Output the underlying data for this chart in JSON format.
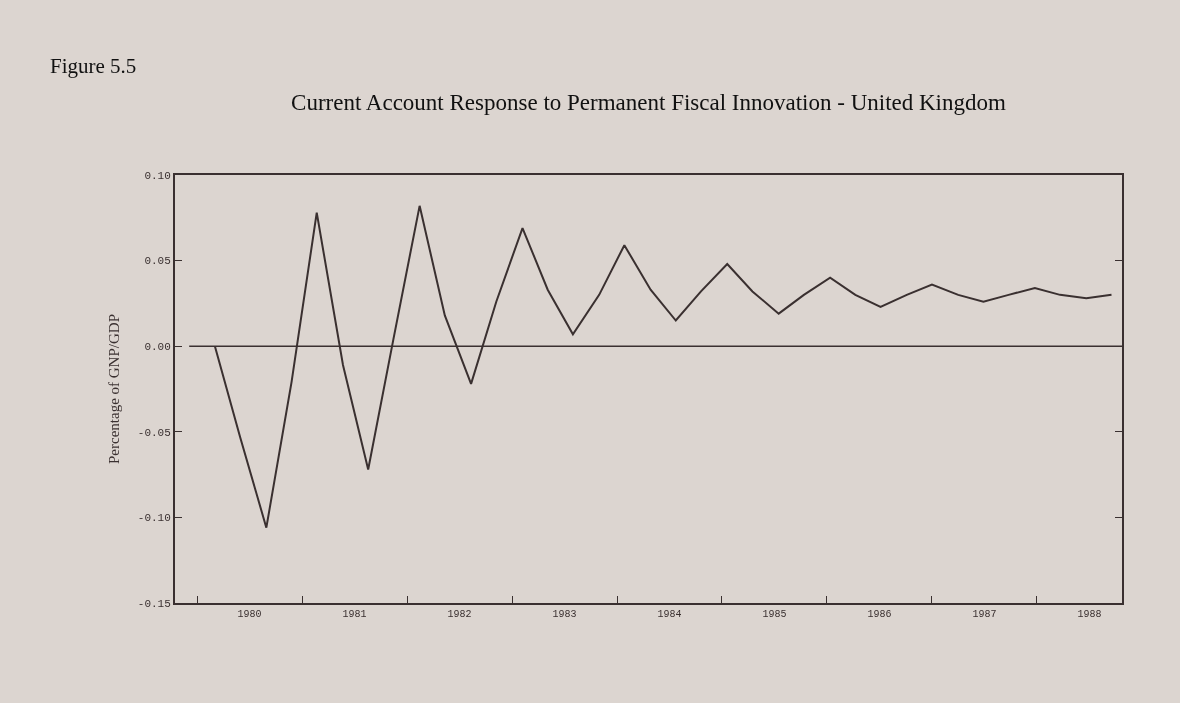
{
  "chart_data": {
    "type": "line",
    "title": "Current Account Response to Permanent Fiscal Innovation - United Kingdom",
    "ylabel": "Percentage of GNP/GDP",
    "annotations": [
      "Figure 5.5"
    ],
    "x": [
      1979.67,
      1979.91,
      1980.16,
      1980.4,
      1980.64,
      1980.89,
      1981.13,
      1981.37,
      1981.62,
      1981.86,
      1982.11,
      1982.35,
      1982.6,
      1982.84,
      1983.08,
      1983.33,
      1983.57,
      1983.82,
      1984.06,
      1984.3,
      1984.55,
      1984.79,
      1985.04,
      1985.28,
      1985.53,
      1985.77,
      1986.01,
      1986.26,
      1986.5,
      1986.75,
      1986.99,
      1987.23,
      1987.48,
      1987.72,
      1987.97,
      1988.21
    ],
    "series": [
      {
        "color": "#3a3030",
        "values": [
          0,
          -0.053,
          -0.106,
          -0.021,
          0.078,
          -0.011,
          -0.072,
          0.004,
          0.082,
          0.018,
          -0.022,
          0.026,
          0.069,
          0.033,
          0.007,
          0.03,
          0.059,
          0.033,
          0.015,
          0.032,
          0.048,
          0.032,
          0.019,
          0.03,
          0.04,
          0.03,
          0.023,
          0.03,
          0.036,
          0.03,
          0.026,
          0.03,
          0.034,
          0.03,
          0.028,
          0.03
        ]
      }
    ],
    "xlim": [
      1979.29,
      1988.31
    ],
    "xticks": [
      {
        "value": 1979.5,
        "label": null
      },
      {
        "value": 1980,
        "label": "1980"
      },
      {
        "value": 1980.5,
        "label": null
      },
      {
        "value": 1981,
        "label": "1981"
      },
      {
        "value": 1981.5,
        "label": null
      },
      {
        "value": 1982,
        "label": "1982"
      },
      {
        "value": 1982.5,
        "label": null
      },
      {
        "value": 1983,
        "label": "1983"
      },
      {
        "value": 1983.5,
        "label": null
      },
      {
        "value": 1984,
        "label": "1984"
      },
      {
        "value": 1984.5,
        "label": null
      },
      {
        "value": 1985,
        "label": "1985"
      },
      {
        "value": 1985.5,
        "label": null
      },
      {
        "value": 1986,
        "label": "1986"
      },
      {
        "value": 1986.5,
        "label": null
      },
      {
        "value": 1987,
        "label": "1987"
      },
      {
        "value": 1987.5,
        "label": null
      },
      {
        "value": 1988,
        "label": "1988"
      }
    ],
    "ylim": [
      -0.15,
      0.1
    ],
    "yticks": [
      {
        "value": -0.15,
        "label": "-0.15"
      },
      {
        "value": -0.1,
        "label": "-0.10"
      },
      {
        "value": -0.05,
        "label": "-0.05"
      },
      {
        "value": 0,
        "label": "0.00"
      },
      {
        "value": 0.05,
        "label": "0.05"
      },
      {
        "value": 0.1,
        "label": "0.10"
      }
    ],
    "ref_lines": [
      {
        "axis": "y",
        "value": 0,
        "color": "#3a3030"
      }
    ],
    "grid": false,
    "marker": "none",
    "line_style": "solid"
  }
}
